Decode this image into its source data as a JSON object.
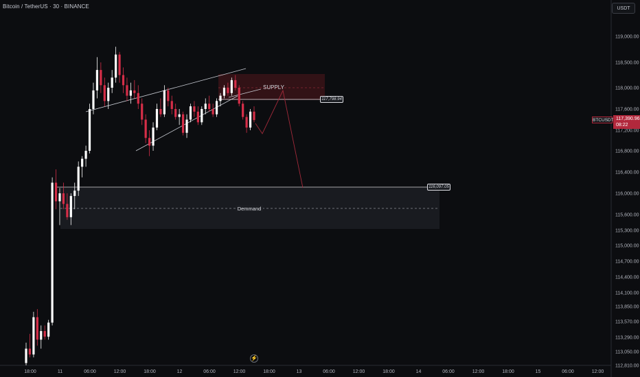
{
  "header": {
    "symbol_line": "Bitcoin / TetherUS · 30 · BINANCE"
  },
  "currency_button": {
    "label": "USDT"
  },
  "last_price": {
    "symbol": "BTCUSDT",
    "price": "117,390.96",
    "countdown": "08:22"
  },
  "annotations": {
    "supply_label": "SUPPLY",
    "demand_label": "Demmand",
    "supply_level": "117,798.94",
    "demand_level": "116,097.05"
  },
  "colors": {
    "up": "#ffffff",
    "down": "#d62e48",
    "background": "#0c0d10",
    "supply_zone": "#3a1418",
    "demand_zone": "#1b1d22"
  },
  "icons": {
    "events": "lightning-icon"
  },
  "chart_data": {
    "type": "candlestick",
    "y_ticks": [
      "119,000.00",
      "118,500.00",
      "118,000.00",
      "117,600.00",
      "117,200.00",
      "116,800.00",
      "116,400.00",
      "116,000.00",
      "115,600.00",
      "115,300.00",
      "115,000.00",
      "114,700.00",
      "114,400.00",
      "114,100.00",
      "113,850.00",
      "113,570.00",
      "113,290.00",
      "113,050.00",
      "112,810.00"
    ],
    "x_ticks": [
      "18:00",
      "11",
      "06:00",
      "12:00",
      "18:00",
      "12",
      "06:00",
      "12:00",
      "18:00",
      "13",
      "06:00",
      "12:00",
      "18:00",
      "14",
      "06:00",
      "12:00",
      "18:00",
      "15",
      "06:00",
      "12:00"
    ],
    "ohlc": [
      [
        112850,
        113200,
        112810,
        113100
      ],
      [
        113100,
        113350,
        112950,
        113000
      ],
      [
        113000,
        113750,
        112950,
        113650
      ],
      [
        113650,
        113800,
        113150,
        113250
      ],
      [
        113250,
        113500,
        113100,
        113400
      ],
      [
        113400,
        113500,
        113250,
        113300
      ],
      [
        113300,
        113600,
        113250,
        113550
      ],
      [
        113550,
        116300,
        113500,
        116200
      ],
      [
        116200,
        116450,
        115700,
        115850
      ],
      [
        115850,
        116100,
        115400,
        116000
      ],
      [
        116000,
        116200,
        115700,
        115800
      ],
      [
        115800,
        116000,
        115500,
        115550
      ],
      [
        115550,
        116000,
        115400,
        115950
      ],
      [
        115950,
        116200,
        115700,
        116050
      ],
      [
        116050,
        116600,
        115950,
        116500
      ],
      [
        116500,
        116700,
        116300,
        116650
      ],
      [
        116650,
        116900,
        116500,
        116800
      ],
      [
        116800,
        117700,
        116750,
        117600
      ],
      [
        117600,
        118100,
        117500,
        117950
      ],
      [
        117950,
        118600,
        117800,
        118350
      ],
      [
        118350,
        118500,
        117900,
        118050
      ],
      [
        118050,
        118200,
        117650,
        117750
      ],
      [
        117750,
        118100,
        117600,
        118000
      ],
      [
        118000,
        118350,
        117900,
        118200
      ],
      [
        118200,
        118800,
        118100,
        118650
      ],
      [
        118650,
        118700,
        118100,
        118250
      ],
      [
        118250,
        118400,
        117900,
        118050
      ],
      [
        118050,
        118200,
        117750,
        117850
      ],
      [
        117850,
        118100,
        117700,
        117950
      ],
      [
        117950,
        118150,
        117800,
        117900
      ],
      [
        117900,
        118050,
        117600,
        117700
      ],
      [
        117700,
        117800,
        117300,
        117400
      ],
      [
        117400,
        117500,
        116950,
        117050
      ],
      [
        117050,
        117200,
        116700,
        116900
      ],
      [
        116900,
        117350,
        116800,
        117250
      ],
      [
        117250,
        117700,
        117200,
        117600
      ],
      [
        117600,
        117800,
        117450,
        117500
      ],
      [
        117500,
        118050,
        117450,
        117950
      ],
      [
        117950,
        118000,
        117650,
        117750
      ],
      [
        117750,
        117850,
        117500,
        117600
      ],
      [
        117600,
        117700,
        117400,
        117450
      ],
      [
        117450,
        117600,
        117300,
        117500
      ],
      [
        117500,
        117550,
        117100,
        117150
      ],
      [
        117150,
        117500,
        117050,
        117400
      ],
      [
        117400,
        117700,
        117350,
        117650
      ],
      [
        117650,
        117750,
        117450,
        117550
      ],
      [
        117550,
        117650,
        117300,
        117350
      ],
      [
        117350,
        117650,
        117300,
        117600
      ],
      [
        117600,
        117800,
        117500,
        117700
      ],
      [
        117700,
        117850,
        117550,
        117600
      ],
      [
        117600,
        117700,
        117450,
        117500
      ],
      [
        117500,
        117800,
        117450,
        117750
      ],
      [
        117750,
        117900,
        117650,
        117850
      ],
      [
        117850,
        118050,
        117800,
        118000
      ],
      [
        118000,
        118100,
        117850,
        117900
      ],
      [
        117900,
        118200,
        117850,
        118150
      ],
      [
        118150,
        118250,
        117950,
        118000
      ],
      [
        118000,
        118050,
        117650,
        117700
      ],
      [
        117700,
        117750,
        117400,
        117450
      ],
      [
        117450,
        117500,
        117150,
        117250
      ],
      [
        117250,
        117600,
        117200,
        117550
      ],
      [
        117550,
        117650,
        117350,
        117390.96
      ]
    ]
  }
}
